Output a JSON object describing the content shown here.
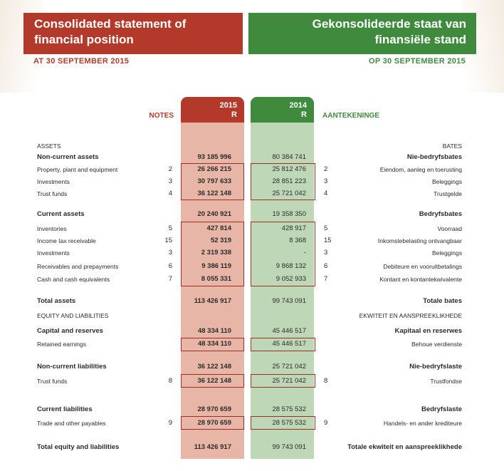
{
  "header": {
    "title_en_line1": "Consolidated statement of",
    "title_en_line2": "financial position",
    "title_af_line1": "Gekonsolideerde staat van",
    "title_af_line2": "finansiële stand",
    "date_en": "AT 30 SEPTEMBER 2015",
    "date_af": "OP 30 SEPTEMBER 2015"
  },
  "columns": {
    "notes_en": "NOTES",
    "notes_af": "AANTEKENINGE",
    "year_current": "2015",
    "year_prior": "2014",
    "currency": "R"
  },
  "rows": [
    {
      "en": "ASSETS",
      "note": "",
      "v2015": "",
      "v2014": "",
      "af": "BATES"
    },
    {
      "en": "Non-current assets",
      "note": "",
      "v2015": "93 185 996",
      "v2014": "80 384 741",
      "af": "Nie-bedryfsbates"
    },
    {
      "en": "Property, plant and equipment",
      "note": "2",
      "v2015": "26 266 215",
      "v2014": "25 812 476",
      "af": "Eiendom, aanleg en toerusting"
    },
    {
      "en": "Investments",
      "note": "3",
      "v2015": "30 797 633",
      "v2014": "28 851 223",
      "af": "Beleggings"
    },
    {
      "en": "Trust funds",
      "note": "4",
      "v2015": "36 122 148",
      "v2014": "25 721 042",
      "af": "Trustgelde"
    },
    {
      "en": "Current assets",
      "note": "",
      "v2015": "20 240 921",
      "v2014": "19 358 350",
      "af": "Bedryfsbates"
    },
    {
      "en": "Inventories",
      "note": "5",
      "v2015": "427 814",
      "v2014": "428 917",
      "af": "Voorraad"
    },
    {
      "en": "Income tax receivable",
      "note": "15",
      "v2015": "52 319",
      "v2014": "8 368",
      "af": "Inkomstebelasting ontvangbaar"
    },
    {
      "en": "Investments",
      "note": "3",
      "v2015": "2 319 338",
      "v2014": "-",
      "af": "Beleggings"
    },
    {
      "en": "Receivables and prepayments",
      "note": "6",
      "v2015": "9 386 119",
      "v2014": "9 868 132",
      "af": "Debiteure en vooruitbetalings"
    },
    {
      "en": "Cash and cash equivalents",
      "note": "7",
      "v2015": "8 055 331",
      "v2014": "9 052 933",
      "af": "Kontant en kontantekwivalente"
    },
    {
      "en": "Total assets",
      "note": "",
      "v2015": "113 426 917",
      "v2014": "99 743 091",
      "af": "Totale bates"
    },
    {
      "en": "EQUITY AND LIABILITIES",
      "note": "",
      "v2015": "",
      "v2014": "",
      "af": "EKWITEIT EN AANSPREEKLIKHEDE"
    },
    {
      "en": "Capital and reserves",
      "note": "",
      "v2015": "48 334 110",
      "v2014": "45 446 517",
      "af": "Kapitaal en reserwes"
    },
    {
      "en": "Retained earnings",
      "note": "",
      "v2015": "48 334 110",
      "v2014": "45 446 517",
      "af": "Behoue verdienste"
    },
    {
      "en": "Non-current liabilities",
      "note": "",
      "v2015": "36 122 148",
      "v2014": "25 721 042",
      "af": "Nie-bedryfslaste"
    },
    {
      "en": "Trust funds",
      "note": "8",
      "v2015": "36 122 148",
      "v2014": "25 721 042",
      "af": "Trustfondse"
    },
    {
      "en": "Current liabilities",
      "note": "",
      "v2015": "28 970 659",
      "v2014": "28 575 532",
      "af": "Bedryfslaste"
    },
    {
      "en": "Trade and other payables",
      "note": "9",
      "v2015": "28 970 659",
      "v2014": "28 575 532",
      "af": "Handels- en ander krediteure"
    },
    {
      "en": "Total equity and liabilities",
      "note": "",
      "v2015": "113 426 917",
      "v2014": "99 743 091",
      "af": "Totale ekwiteit en aanspreeklikhede"
    }
  ],
  "colors": {
    "accent_red": "#b33a2b",
    "accent_green": "#3f8a3c",
    "col_2015_fill": "#e8b6a6",
    "col_2014_fill": "#bed7b6"
  }
}
